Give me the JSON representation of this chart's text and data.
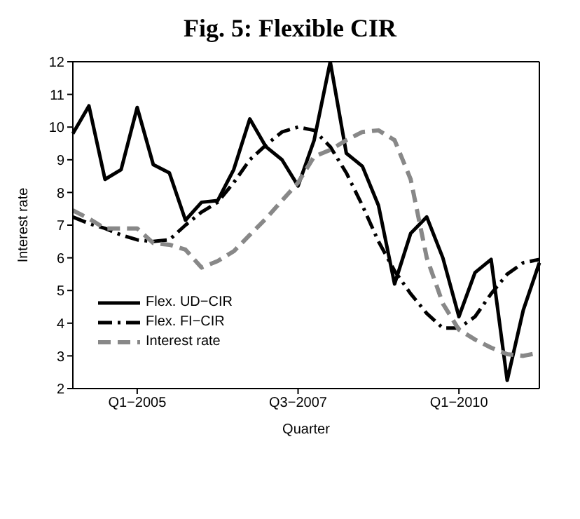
{
  "chart_data": {
    "type": "line",
    "title": "Fig. 5: Flexible CIR",
    "xlabel": "Quarter",
    "ylabel": "Interest rate",
    "categories": [
      null,
      null,
      null,
      null,
      "Q1−2005",
      null,
      null,
      null,
      null,
      null,
      null,
      null,
      null,
      null,
      "Q3−2007",
      null,
      null,
      null,
      null,
      null,
      null,
      null,
      null,
      null,
      "Q1−2010",
      null,
      null,
      null,
      null,
      null
    ],
    "ylim": [
      2,
      12
    ],
    "yticks": [
      2,
      3,
      4,
      5,
      6,
      7,
      8,
      9,
      10,
      11,
      12
    ],
    "grid": false,
    "legend": "bottom left",
    "marker": "none",
    "series": [
      {
        "name": "Flex. UD−CIR",
        "color": "#000000",
        "line_style": "solid",
        "values": [
          9.8,
          10.65,
          8.4,
          8.7,
          10.6,
          8.85,
          8.6,
          7.15,
          7.7,
          7.75,
          8.7,
          10.25,
          9.4,
          9.0,
          8.2,
          9.6,
          12.0,
          9.2,
          8.8,
          7.6,
          5.2,
          6.75,
          7.25,
          6.0,
          4.2,
          5.55,
          5.95,
          2.25,
          4.4,
          5.85
        ]
      },
      {
        "name": "Flex. FI−CIR",
        "color": "#000000",
        "line_style": "dashdot",
        "values": [
          7.25,
          7.05,
          6.9,
          6.7,
          6.55,
          6.5,
          6.55,
          7.0,
          7.4,
          7.7,
          8.3,
          9.0,
          9.45,
          9.85,
          10.0,
          9.9,
          9.4,
          8.6,
          7.6,
          6.5,
          5.6,
          4.9,
          4.3,
          3.85,
          3.85,
          4.2,
          4.9,
          5.5,
          5.85,
          5.95
        ]
      },
      {
        "name": "Interest rate",
        "color": "#888888",
        "line_style": "dashed",
        "values": [
          7.45,
          7.2,
          6.9,
          6.9,
          6.9,
          6.45,
          6.4,
          6.25,
          5.7,
          5.9,
          6.2,
          6.7,
          7.2,
          7.75,
          8.3,
          9.1,
          9.3,
          9.6,
          9.85,
          9.9,
          9.6,
          8.4,
          6.0,
          4.6,
          3.8,
          3.5,
          3.25,
          3.05,
          3.0,
          3.1
        ]
      }
    ]
  }
}
